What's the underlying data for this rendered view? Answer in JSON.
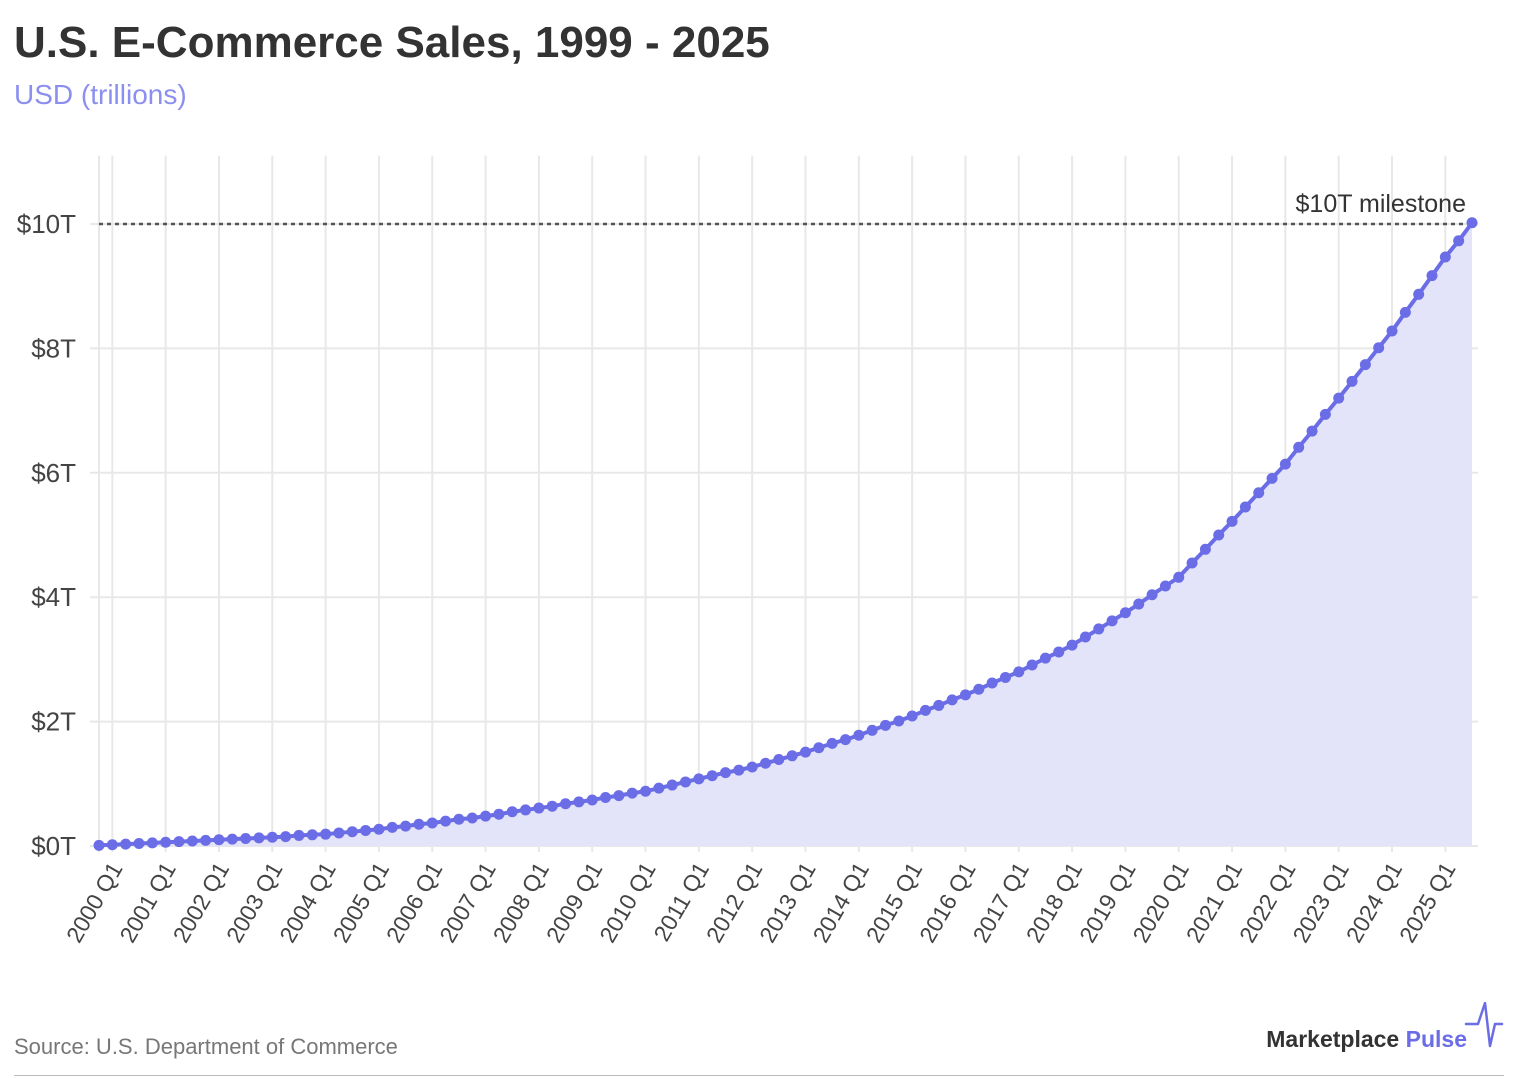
{
  "colors": {
    "series": "#6b6de6",
    "area_fill": "#e3e4fa",
    "subtitle": "#8b8ff0",
    "grid": "#e8e8e8",
    "reference_line": "#555555",
    "logo_accent": "#6b6de6"
  },
  "logo": {
    "name_part1": "Marketplace",
    "name_part2": "Pulse",
    "icon": "pulse-line-icon"
  },
  "chart_data": {
    "type": "line",
    "title": "U.S. E-Commerce Sales, 1999 - 2025",
    "subtitle": "USD (trillions)",
    "source": "Source: U.S. Department of Commerce",
    "xlabel": "",
    "ylabel": "",
    "grid": true,
    "area_fill": true,
    "markers": true,
    "x_start": 1999.75,
    "x_step": 0.25,
    "xlim": [
      1999.75,
      2025.5
    ],
    "ylim": [
      0,
      11.1
    ],
    "x_ticks": [
      2000,
      2001,
      2002,
      2003,
      2004,
      2005,
      2006,
      2007,
      2008,
      2009,
      2010,
      2011,
      2012,
      2013,
      2014,
      2015,
      2016,
      2017,
      2018,
      2019,
      2020,
      2021,
      2022,
      2023,
      2024,
      2025
    ],
    "x_tick_labels": [
      "2000 Q1",
      "2001 Q1",
      "2002 Q1",
      "2003 Q1",
      "2004 Q1",
      "2005 Q1",
      "2006 Q1",
      "2007 Q1",
      "2008 Q1",
      "2009 Q1",
      "2010 Q1",
      "2011 Q1",
      "2012 Q1",
      "2013 Q1",
      "2014 Q1",
      "2015 Q1",
      "2016 Q1",
      "2017 Q1",
      "2018 Q1",
      "2019 Q1",
      "2020 Q1",
      "2021 Q1",
      "2022 Q1",
      "2023 Q1",
      "2024 Q1",
      "2025 Q1"
    ],
    "y_ticks": [
      0,
      2,
      4,
      6,
      8,
      10
    ],
    "y_tick_labels": [
      "$0T",
      "$2T",
      "$4T",
      "$6T",
      "$8T",
      "$10T"
    ],
    "values": [
      0.01,
      0.02,
      0.03,
      0.04,
      0.05,
      0.06,
      0.07,
      0.08,
      0.09,
      0.1,
      0.11,
      0.12,
      0.13,
      0.14,
      0.15,
      0.17,
      0.18,
      0.19,
      0.21,
      0.23,
      0.25,
      0.27,
      0.3,
      0.32,
      0.35,
      0.37,
      0.4,
      0.43,
      0.45,
      0.48,
      0.51,
      0.55,
      0.58,
      0.61,
      0.64,
      0.68,
      0.71,
      0.74,
      0.78,
      0.81,
      0.85,
      0.88,
      0.93,
      0.98,
      1.03,
      1.08,
      1.13,
      1.18,
      1.22,
      1.27,
      1.33,
      1.39,
      1.45,
      1.51,
      1.58,
      1.65,
      1.71,
      1.78,
      1.86,
      1.94,
      2.01,
      2.09,
      2.18,
      2.26,
      2.35,
      2.43,
      2.52,
      2.62,
      2.71,
      2.8,
      2.91,
      3.02,
      3.12,
      3.23,
      3.36,
      3.49,
      3.62,
      3.75,
      3.89,
      4.04,
      4.18,
      4.32,
      4.55,
      4.77,
      5.0,
      5.22,
      5.45,
      5.68,
      5.91,
      6.14,
      6.41,
      6.67,
      6.94,
      7.2,
      7.47,
      7.74,
      8.01,
      8.28,
      8.58,
      8.87,
      9.17,
      9.47,
      9.73,
      10.02
    ],
    "reference_line": {
      "y": 10,
      "label": "$10T milestone"
    }
  }
}
